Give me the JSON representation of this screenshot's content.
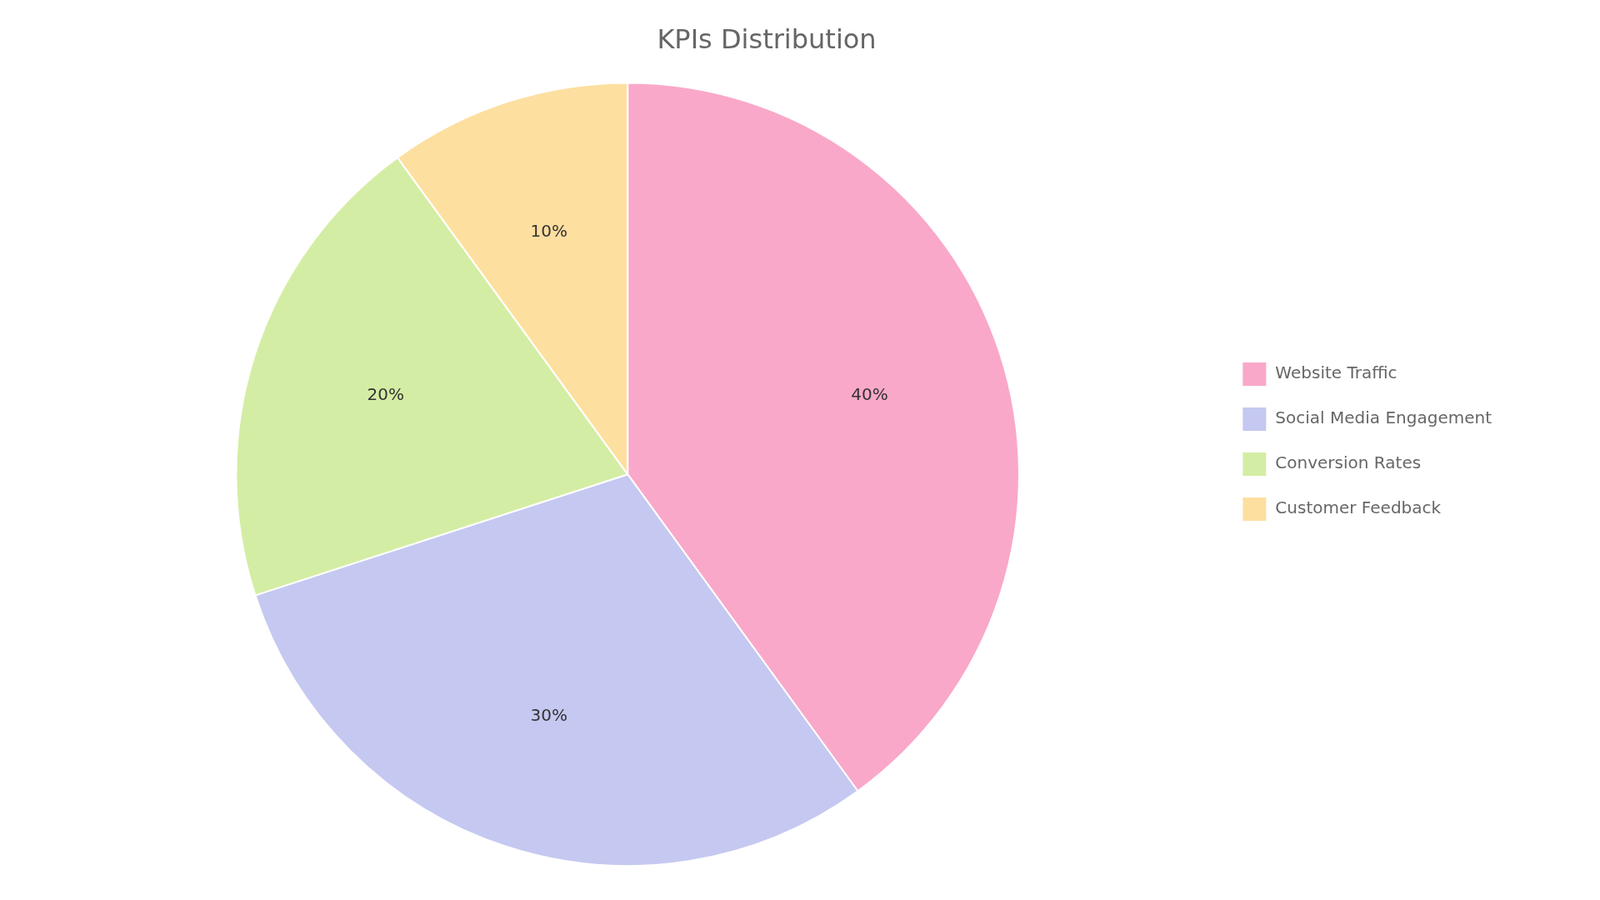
{
  "chart_data": {
    "type": "pie",
    "title": "KPIs Distribution",
    "categories": [
      "Website Traffic",
      "Social Media Engagement",
      "Conversion Rates",
      "Customer Feedback"
    ],
    "values": [
      40,
      30,
      20,
      10
    ],
    "value_labels": [
      "40%",
      "30%",
      "20%",
      "10%"
    ],
    "colors": [
      "#F9A8C9",
      "#C5C8F0",
      "#D4EDA4",
      "#FDDFA0"
    ],
    "data_labels": true,
    "legend": "right"
  }
}
